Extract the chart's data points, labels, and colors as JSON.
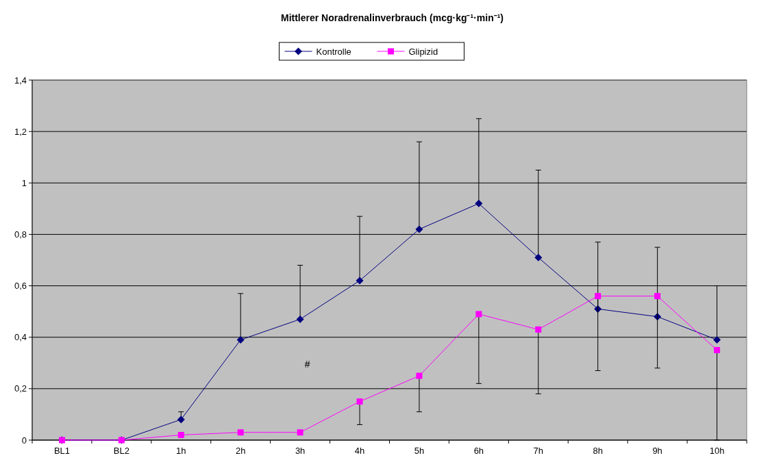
{
  "chart_data": {
    "type": "line",
    "title": "Mittlerer Noradrenalinverbrauch (mcg·kg⁻¹·min⁻¹)",
    "categories": [
      "BL1",
      "BL2",
      "1h",
      "2h",
      "3h",
      "4h",
      "5h",
      "6h",
      "7h",
      "8h",
      "9h",
      "10h"
    ],
    "series": [
      {
        "name": "Kontrolle",
        "color": "#000080",
        "marker": "diamond",
        "values": [
          0,
          0,
          0.08,
          0.39,
          0.47,
          0.62,
          0.82,
          0.92,
          0.71,
          0.51,
          0.48,
          0.39
        ],
        "errors": [
          null,
          null,
          [
            0.08,
            0.11
          ],
          [
            0.39,
            0.57
          ],
          [
            0.47,
            0.68
          ],
          [
            0.62,
            0.87
          ],
          [
            0.82,
            1.16
          ],
          [
            0.92,
            1.25
          ],
          [
            0.71,
            1.05
          ],
          [
            0.51,
            0.77
          ],
          [
            0.48,
            0.75
          ],
          [
            0.39,
            0.6
          ]
        ]
      },
      {
        "name": "Glipizid",
        "color": "#ff00ff",
        "marker": "square",
        "values": [
          0,
          0,
          0.02,
          0.03,
          0.03,
          0.15,
          0.25,
          0.49,
          0.43,
          0.56,
          0.56,
          0.35
        ],
        "errors": [
          null,
          null,
          null,
          null,
          null,
          [
            0.06,
            0.15
          ],
          [
            0.11,
            0.25
          ],
          [
            0.22,
            0.49
          ],
          [
            0.18,
            0.43
          ],
          [
            0.27,
            0.56
          ],
          [
            0.28,
            0.56
          ],
          [
            0,
            0.35
          ]
        ]
      }
    ],
    "ylim": [
      0,
      1.4
    ],
    "yticks": [
      0,
      {
        "value": 0.2,
        "label": "0,2"
      },
      {
        "value": 0.4,
        "label": "0,4"
      },
      {
        "value": 0.6,
        "label": "0,6"
      },
      {
        "value": 0.8,
        "label": "0,8"
      },
      1,
      {
        "value": 1.2,
        "label": "1,2"
      },
      {
        "value": 1.4,
        "label": "1,4"
      }
    ],
    "grid": "y",
    "legend": "top",
    "annotations": [
      "#"
    ]
  }
}
